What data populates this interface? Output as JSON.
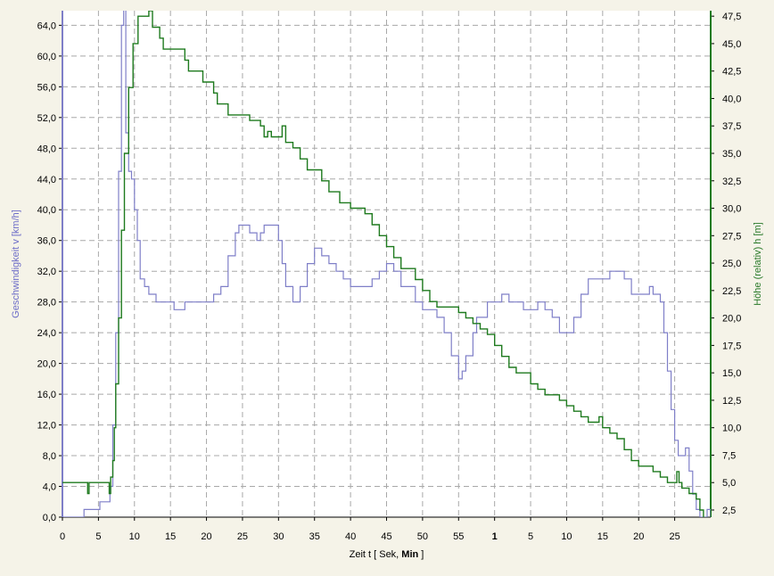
{
  "chart_data": {
    "type": "line",
    "xlabel": {
      "prefix": "Zeit  t   [ Sek, ",
      "bold": "Min",
      "suffix": " ]"
    },
    "ylabel_left": "Geschwindigkeit  v  [km/h]",
    "ylabel_right": "Höhe (relativ)  h  [m]",
    "grid": true,
    "x_tick_labels": [
      "0",
      "5",
      "10",
      "15",
      "20",
      "25",
      "30",
      "35",
      "40",
      "45",
      "50",
      "55",
      "1",
      "5",
      "10",
      "15",
      "20",
      "25"
    ],
    "x_tick_bold_index": 12,
    "x_range_seconds": [
      0,
      90
    ],
    "y_left": {
      "range": [
        0,
        65.9
      ],
      "ticks": [
        "0,0",
        "4,0",
        "8,0",
        "12,0",
        "16,0",
        "20,0",
        "24,0",
        "28,0",
        "32,0",
        "36,0",
        "40,0",
        "44,0",
        "48,0",
        "52,0",
        "56,0",
        "60,0",
        "64,0"
      ]
    },
    "y_right": {
      "range": [
        1.85,
        48
      ],
      "ticks": [
        "2,5",
        "5,0",
        "7,5",
        "10,0",
        "12,5",
        "15,0",
        "17,5",
        "20,0",
        "22,5",
        "25,0",
        "27,5",
        "30,0",
        "32,5",
        "35,0",
        "37,5",
        "40,0",
        "42,5",
        "45,0",
        "47,5"
      ]
    },
    "colors": {
      "speed": "#7f7fc8",
      "height": "#1e7a1e",
      "grid": "#a8a8a8",
      "plot_bg": "#ffffff",
      "page_bg": "#f5f3e8",
      "ylabel_left": "#6e6ec8",
      "ylabel_right": "#2a7a2a"
    },
    "series": [
      {
        "name": "Geschwindigkeit  v  [km/h]",
        "axis": "left",
        "points": [
          [
            0,
            0
          ],
          [
            0.5,
            0
          ],
          [
            3,
            1
          ],
          [
            4.5,
            1
          ],
          [
            5.2,
            2
          ],
          [
            6,
            2
          ],
          [
            6.6,
            4
          ],
          [
            7,
            12
          ],
          [
            7.4,
            24
          ],
          [
            7.8,
            45
          ],
          [
            8.2,
            64
          ],
          [
            8.5,
            66
          ],
          [
            8.8,
            50
          ],
          [
            9.2,
            45
          ],
          [
            9.6,
            44
          ],
          [
            10,
            40
          ],
          [
            10.4,
            36
          ],
          [
            10.8,
            31
          ],
          [
            11.4,
            30
          ],
          [
            12,
            29
          ],
          [
            13,
            28
          ],
          [
            14,
            28
          ],
          [
            15.5,
            27
          ],
          [
            16.5,
            27
          ],
          [
            17,
            28
          ],
          [
            19,
            28
          ],
          [
            20,
            28
          ],
          [
            21,
            29
          ],
          [
            22,
            30
          ],
          [
            23,
            34
          ],
          [
            24,
            37
          ],
          [
            24.5,
            38
          ],
          [
            25.5,
            38
          ],
          [
            26,
            37
          ],
          [
            27,
            36
          ],
          [
            27.5,
            37
          ],
          [
            28,
            38
          ],
          [
            29,
            38
          ],
          [
            30,
            36
          ],
          [
            30.5,
            33
          ],
          [
            31,
            30
          ],
          [
            32,
            28
          ],
          [
            33,
            30
          ],
          [
            34,
            33
          ],
          [
            35,
            35
          ],
          [
            36,
            34
          ],
          [
            37,
            33
          ],
          [
            38,
            32
          ],
          [
            39,
            31
          ],
          [
            40,
            30
          ],
          [
            41,
            30
          ],
          [
            42,
            30
          ],
          [
            43,
            31
          ],
          [
            44,
            32
          ],
          [
            45,
            33
          ],
          [
            46,
            32
          ],
          [
            47,
            30
          ],
          [
            48,
            30
          ],
          [
            49,
            28
          ],
          [
            50,
            27
          ],
          [
            51,
            27
          ],
          [
            52,
            26
          ],
          [
            53,
            24
          ],
          [
            54,
            21
          ],
          [
            55,
            18
          ],
          [
            55.5,
            19
          ],
          [
            56,
            21
          ],
          [
            57,
            24
          ],
          [
            57.5,
            26
          ],
          [
            58,
            26
          ],
          [
            59,
            28
          ],
          [
            60,
            28
          ],
          [
            61,
            29
          ],
          [
            62,
            28
          ],
          [
            63,
            28
          ],
          [
            64,
            27
          ],
          [
            65,
            27
          ],
          [
            66,
            28
          ],
          [
            67,
            27
          ],
          [
            68,
            26
          ],
          [
            69,
            24
          ],
          [
            70,
            24
          ],
          [
            71,
            26
          ],
          [
            72,
            29
          ],
          [
            73,
            31
          ],
          [
            74,
            31
          ],
          [
            75,
            31
          ],
          [
            76,
            32
          ],
          [
            77,
            32
          ],
          [
            78,
            31
          ],
          [
            79,
            29
          ],
          [
            80,
            29
          ],
          [
            81,
            29
          ],
          [
            81.5,
            30
          ],
          [
            82,
            29
          ],
          [
            83,
            28
          ],
          [
            83.5,
            24
          ],
          [
            84,
            19
          ],
          [
            84.5,
            14
          ],
          [
            85,
            10
          ],
          [
            85.5,
            8
          ],
          [
            86,
            8
          ],
          [
            86.5,
            9
          ],
          [
            87,
            6
          ],
          [
            87.5,
            3
          ],
          [
            88,
            1
          ],
          [
            88.5,
            0
          ],
          [
            89,
            0
          ],
          [
            89.5,
            1
          ],
          [
            90,
            0
          ]
        ]
      },
      {
        "name": "Höhe (relativ)  h  [m]",
        "axis": "right",
        "points": [
          [
            0,
            5
          ],
          [
            3.3,
            5
          ],
          [
            3.5,
            4
          ],
          [
            3.7,
            5
          ],
          [
            6.3,
            5
          ],
          [
            6.5,
            4
          ],
          [
            6.7,
            5.5
          ],
          [
            7,
            7
          ],
          [
            7.2,
            10
          ],
          [
            7.4,
            14
          ],
          [
            7.8,
            20
          ],
          [
            8.2,
            28
          ],
          [
            8.6,
            35
          ],
          [
            9.2,
            41
          ],
          [
            9.8,
            45
          ],
          [
            10.5,
            47.5
          ],
          [
            12,
            48
          ],
          [
            12.5,
            46.5
          ],
          [
            13.5,
            45.5
          ],
          [
            14,
            44.5
          ],
          [
            17,
            43.5
          ],
          [
            17.5,
            42.5
          ],
          [
            19.5,
            41.5
          ],
          [
            21,
            40.5
          ],
          [
            21.5,
            39.5
          ],
          [
            23,
            38.5
          ],
          [
            26,
            38
          ],
          [
            27.5,
            37.5
          ],
          [
            28,
            36.5
          ],
          [
            28.5,
            37
          ],
          [
            29,
            36.5
          ],
          [
            30,
            36.5
          ],
          [
            30.5,
            37.5
          ],
          [
            31,
            36
          ],
          [
            32,
            35.5
          ],
          [
            33,
            34.5
          ],
          [
            34,
            33.5
          ],
          [
            36,
            32.5
          ],
          [
            37,
            31.5
          ],
          [
            38.5,
            30.5
          ],
          [
            40,
            30
          ],
          [
            42,
            29.5
          ],
          [
            43,
            28.5
          ],
          [
            44,
            27.5
          ],
          [
            45,
            26.5
          ],
          [
            46,
            25.5
          ],
          [
            47,
            24.5
          ],
          [
            49,
            23.5
          ],
          [
            50,
            22.5
          ],
          [
            51,
            21.5
          ],
          [
            52,
            21
          ],
          [
            55,
            20.5
          ],
          [
            56,
            20
          ],
          [
            57,
            19.5
          ],
          [
            58,
            19
          ],
          [
            59,
            18.5
          ],
          [
            60,
            17.5
          ],
          [
            61,
            16.5
          ],
          [
            62,
            15.5
          ],
          [
            63,
            15
          ],
          [
            65,
            14
          ],
          [
            66,
            13.5
          ],
          [
            67,
            13
          ],
          [
            69,
            12.5
          ],
          [
            70,
            12
          ],
          [
            71,
            11.5
          ],
          [
            72,
            11
          ],
          [
            73,
            10.5
          ],
          [
            74,
            10.5
          ],
          [
            74.5,
            11
          ],
          [
            75,
            10
          ],
          [
            76,
            9.5
          ],
          [
            77,
            9
          ],
          [
            78,
            8
          ],
          [
            79,
            7
          ],
          [
            80,
            6.5
          ],
          [
            82,
            6
          ],
          [
            83,
            5.5
          ],
          [
            84,
            5
          ],
          [
            85,
            5
          ],
          [
            85.3,
            6
          ],
          [
            85.6,
            5
          ],
          [
            86,
            4.5
          ],
          [
            87,
            4
          ],
          [
            88,
            3.5
          ],
          [
            88.5,
            2.5
          ],
          [
            89,
            1.8
          ],
          [
            90,
            1.8
          ]
        ]
      }
    ]
  }
}
